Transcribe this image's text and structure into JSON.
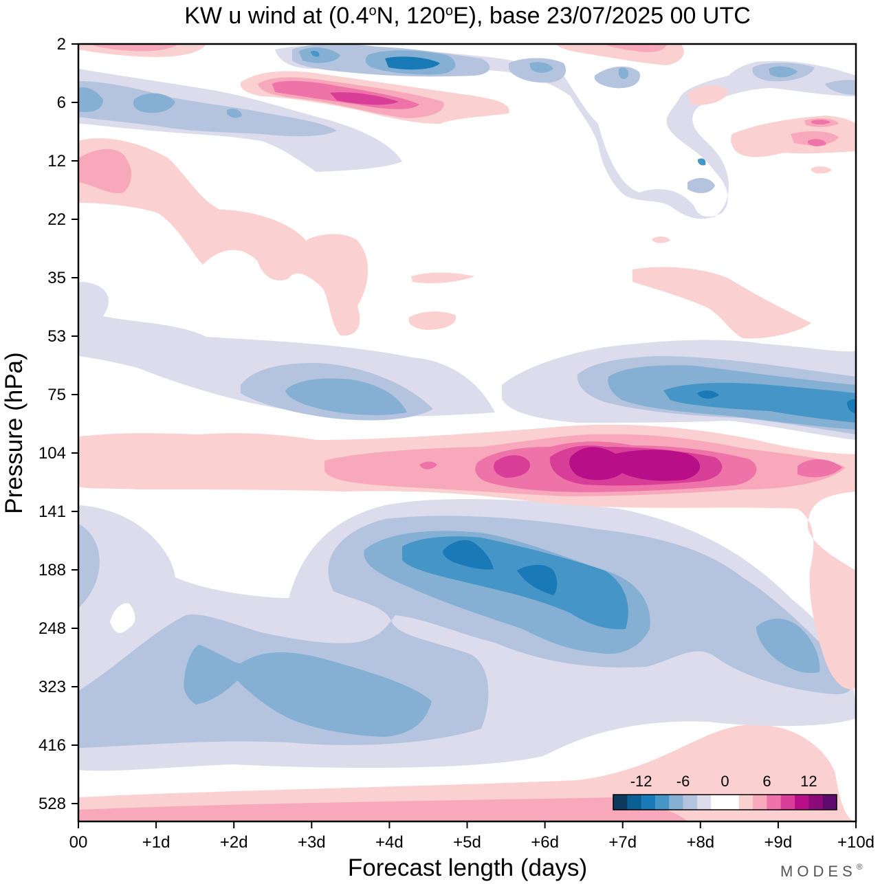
{
  "chart_data": {
    "type": "heatmap",
    "title": "KW u wind at (0.4°N, 120°E),  base 23/07/2025  00 UTC",
    "title_parts": {
      "prefix": "KW u wind at (0.4",
      "deg1": "o",
      "mid": "N, 120",
      "deg2": "o",
      "suffix": "E),  base 23/07/2025  00 UTC"
    },
    "xlabel": "Forecast length (days)",
    "ylabel": "Pressure (hPa)",
    "x_ticks": [
      "00",
      "+1d",
      "+2d",
      "+3d",
      "+4d",
      "+5d",
      "+6d",
      "+7d",
      "+8d",
      "+9d",
      "+10d"
    ],
    "xlim": [
      0,
      10
    ],
    "y_ticks": [
      "2",
      "6",
      "12",
      "22",
      "35",
      "53",
      "75",
      "104",
      "141",
      "188",
      "248",
      "323",
      "416",
      "528"
    ],
    "y_scale": "pressure levels, top = 2 hPa, bottom ≈ 620 hPa",
    "colorbar": {
      "labels": [
        "-12",
        "-6",
        "0",
        "6",
        "12"
      ],
      "colors": [
        "#0d3a5c",
        "#0a5f94",
        "#1a7ab8",
        "#4595c6",
        "#85b0d4",
        "#b5c4de",
        "#dcdcec",
        "#ffffff",
        "#ffffff",
        "#fbd0d0",
        "#f7a9bb",
        "#ee73a8",
        "#d83d98",
        "#b80e87",
        "#8c0a7a",
        "#5e0a6e"
      ],
      "range": [
        -16,
        16
      ],
      "step": 2
    },
    "features": [
      {
        "name": "lower-stratosphere westerly maximum",
        "x_center": 7.2,
        "pressure": 104,
        "value": 14
      },
      {
        "name": "upper-tropospheric easterly minimum",
        "x_center": 5.4,
        "pressure": 180,
        "value": -12
      },
      {
        "name": "tropopause easterly band",
        "x_center": 8.3,
        "pressure": 75,
        "value": -11
      },
      {
        "name": "mid-tropospheric easterly band",
        "x_center": 3.0,
        "pressure": 320,
        "value": -8
      },
      {
        "name": "upper-stratosphere westerly band",
        "x_center": 3.6,
        "pressure": 5,
        "value": 10
      },
      {
        "name": "upper-stratosphere easterly core",
        "x_center": 4.0,
        "pressure": 3,
        "value": -12
      }
    ]
  },
  "brand": "MODES",
  "brand_mark": "®"
}
